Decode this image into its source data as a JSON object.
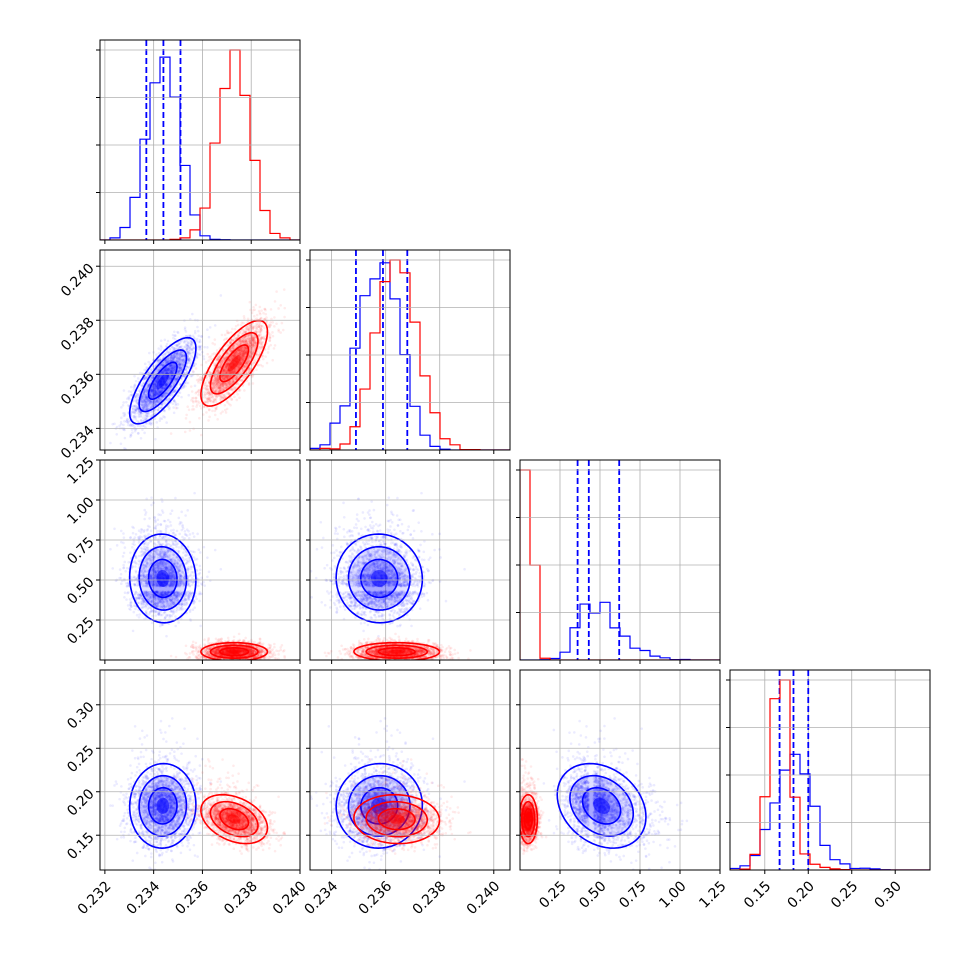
{
  "chart_data": {
    "type": "corner",
    "title": "",
    "n_params": 4,
    "param_labels": [
      "",
      "",
      "",
      ""
    ],
    "grid": true,
    "colors": {
      "series_a": "#0000ff",
      "series_b": "#ff0000"
    },
    "series": [
      {
        "color": "#0000ff",
        "means": [
          0.2344,
          0.2358,
          0.46,
          0.185
        ],
        "sds": [
          0.00065,
          0.00075,
          0.14,
          0.022
        ],
        "quantiles": [
          [
            0.2337,
            0.2344,
            0.2351
          ],
          [
            0.2349,
            0.2359,
            0.2368
          ],
          [
            0.36,
            0.43,
            0.62
          ],
          [
            0.167,
            0.183,
            0.2
          ]
        ],
        "correlations": {
          "0-1": 0.75,
          "0-2": 0.0,
          "0-3": 0.0,
          "1-2": 0.0,
          "1-3": 0.0,
          "2-3": -0.3
        }
      },
      {
        "color": "#ff0000",
        "means": [
          0.2373,
          0.2364,
          0.05,
          0.168
        ],
        "sds": [
          0.00065,
          0.00075,
          0.03,
          0.012
        ],
        "quantiles": [],
        "correlations": {
          "0-1": 0.75,
          "0-2": 0.0,
          "0-3": -0.35,
          "1-2": 0.0,
          "1-3": 0.3,
          "2-3": 0.0
        }
      }
    ],
    "axes": [
      {
        "range": [
          0.2318,
          0.24
        ],
        "ticks": [
          0.232,
          0.234,
          0.236,
          0.238,
          0.24
        ],
        "tick_labels": [
          "0.232",
          "0.234",
          "0.236",
          "0.238",
          "0.240"
        ]
      },
      {
        "range": [
          0.2332,
          0.2406
        ],
        "ticks": [
          0.234,
          0.236,
          0.238,
          0.24
        ],
        "tick_labels": [
          "0.234",
          "0.236",
          "0.238",
          "0.240"
        ]
      },
      {
        "range": [
          0.0,
          1.25
        ],
        "ticks": [
          0.25,
          0.5,
          0.75,
          1.0,
          1.25
        ],
        "tick_labels": [
          "0.25",
          "0.50",
          "0.75",
          "1.00",
          "1.25"
        ]
      },
      {
        "range": [
          0.11,
          0.34
        ],
        "ticks": [
          0.15,
          0.2,
          0.25,
          0.3
        ],
        "tick_labels": [
          "0.15",
          "0.20",
          "0.25",
          "0.30"
        ]
      }
    ]
  }
}
